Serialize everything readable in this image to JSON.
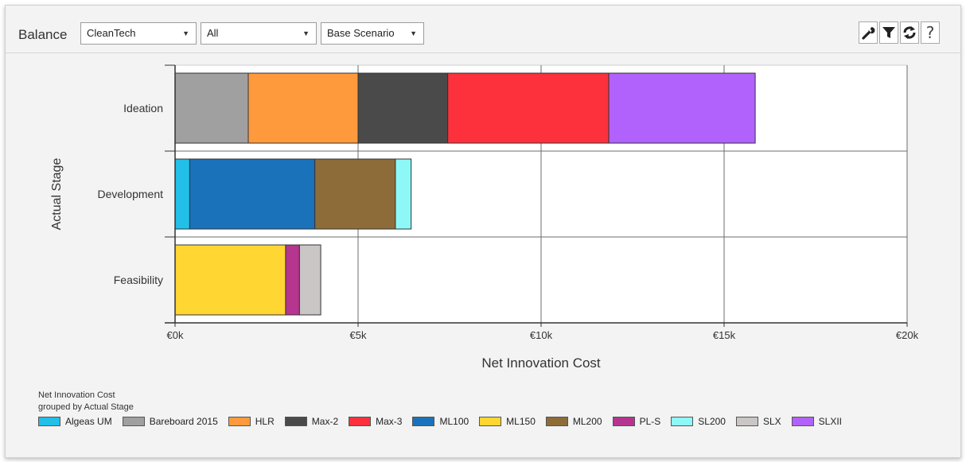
{
  "toolbar": {
    "title": "Balance",
    "dropdowns": [
      {
        "value": "CleanTech"
      },
      {
        "value": "All"
      },
      {
        "value": "Base Scenario"
      }
    ],
    "icons": [
      "wrench-icon",
      "filter-icon",
      "refresh-icon",
      "help-icon"
    ],
    "help_label": "?"
  },
  "legend": {
    "caption_line1": "Net Innovation Cost",
    "caption_line2": "grouped by Actual Stage"
  },
  "chart_data": {
    "type": "bar",
    "orientation": "horizontal",
    "stacked": true,
    "categories": [
      "Ideation",
      "Development",
      "Feasibility"
    ],
    "xlabel": "Net Innovation Cost",
    "ylabel": "Actual Stage",
    "xlim": [
      0,
      20000
    ],
    "xticks": [
      0,
      5000,
      10000,
      15000,
      20000
    ],
    "xtick_labels": [
      "€0k",
      "€5k",
      "€10k",
      "€15k",
      "€20k"
    ],
    "grid": true,
    "legend_position": "bottom",
    "series": [
      {
        "name": "Algeas UM",
        "color": "#22bfe8",
        "values": [
          0,
          400,
          0
        ]
      },
      {
        "name": "Bareboard 2015",
        "color": "#a0a0a0",
        "values": [
          2000,
          0,
          0
        ]
      },
      {
        "name": "HLR",
        "color": "#ff9a3c",
        "values": [
          3000,
          0,
          0
        ]
      },
      {
        "name": "Max-2",
        "color": "#4a4a4a",
        "values": [
          2450,
          0,
          0
        ]
      },
      {
        "name": "Max-3",
        "color": "#fc313c",
        "values": [
          4400,
          0,
          0
        ]
      },
      {
        "name": "ML100",
        "color": "#1a72bb",
        "values": [
          0,
          3420,
          0
        ]
      },
      {
        "name": "ML150",
        "color": "#ffd632",
        "values": [
          0,
          0,
          3020
        ]
      },
      {
        "name": "ML200",
        "color": "#8e6c3a",
        "values": [
          0,
          2200,
          0
        ]
      },
      {
        "name": "PL-S",
        "color": "#b5358f",
        "values": [
          0,
          0,
          380
        ]
      },
      {
        "name": "SL200",
        "color": "#8ef8f8",
        "values": [
          0,
          430,
          0
        ]
      },
      {
        "name": "SLX",
        "color": "#cac6c6",
        "values": [
          0,
          0,
          580
        ]
      },
      {
        "name": "SLXII",
        "color": "#b162fd",
        "values": [
          4000,
          0,
          0
        ]
      }
    ]
  }
}
